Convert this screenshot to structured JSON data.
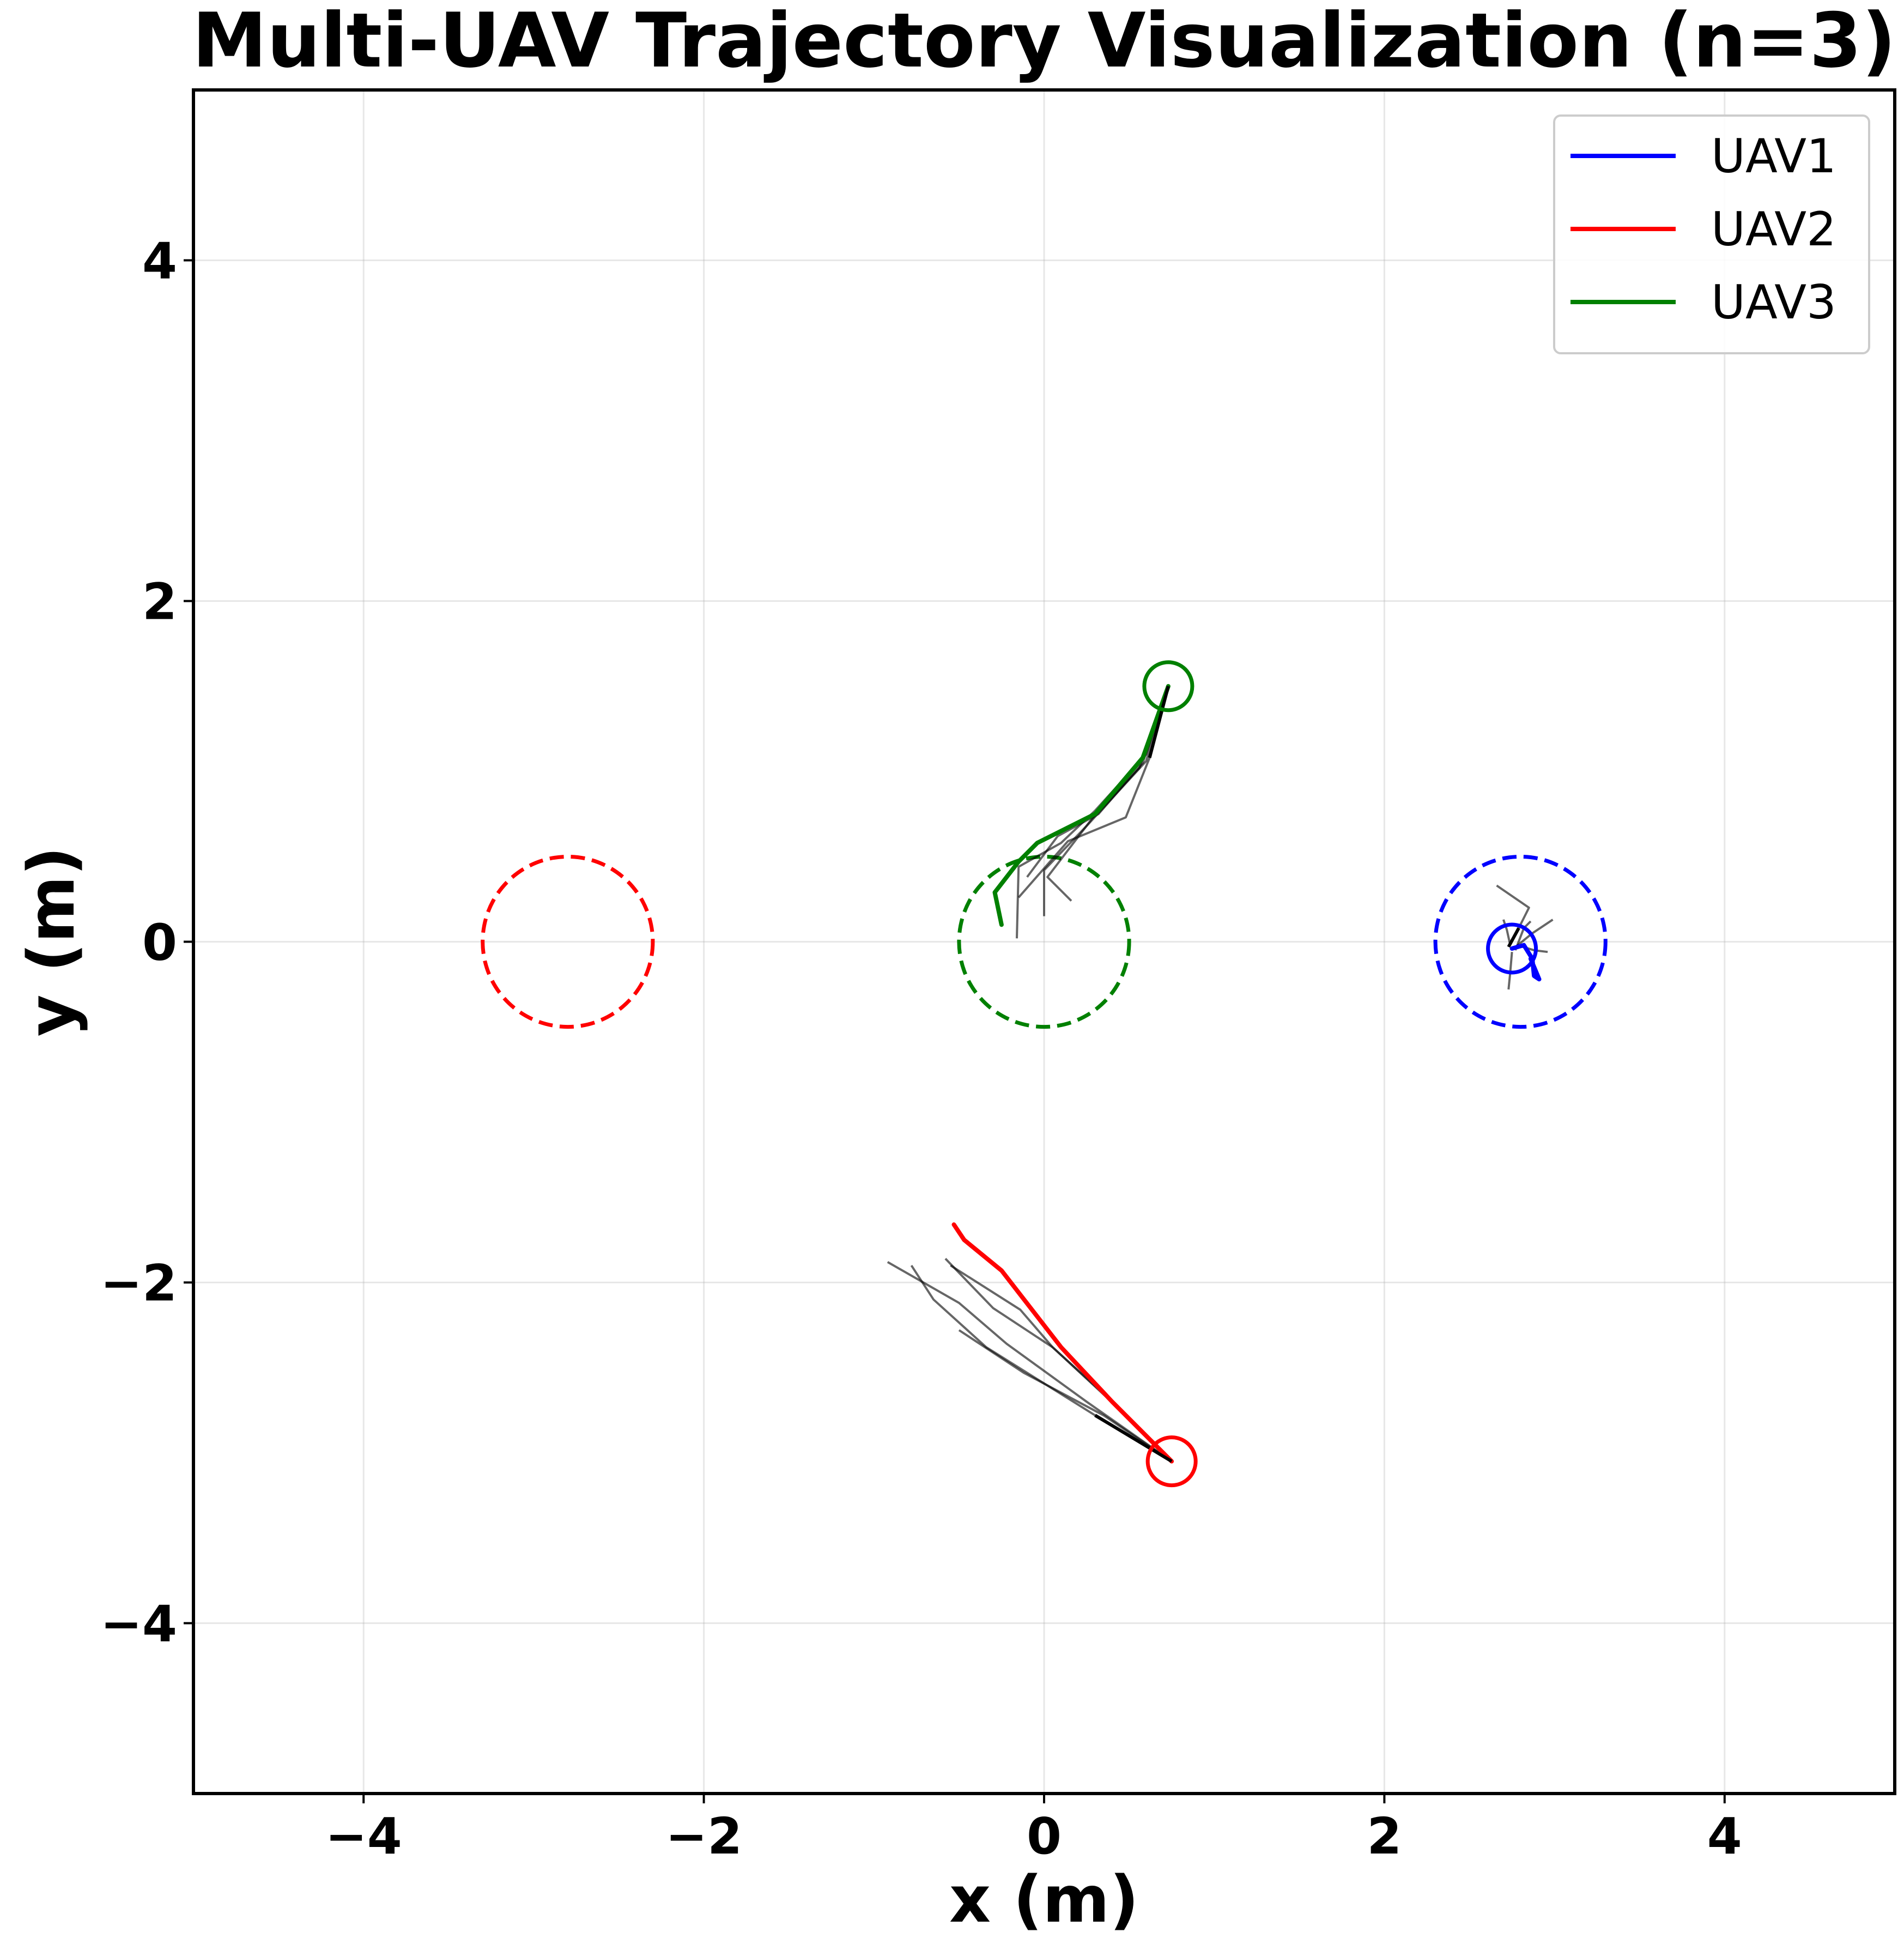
{
  "chart_data": {
    "type": "line",
    "title": "Multi-UAV Trajectory Visualization (n=3)",
    "xlabel": "x (m)",
    "ylabel": "y (m)",
    "xlim": [
      -5,
      5
    ],
    "ylim": [
      -5,
      5
    ],
    "xticks": [
      -4,
      -2,
      0,
      2,
      4
    ],
    "yticks": [
      -4,
      -2,
      0,
      2,
      4
    ],
    "xtick_labels": [
      "−4",
      "−2",
      "0",
      "2",
      "4"
    ],
    "ytick_labels": [
      "−4",
      "−2",
      "0",
      "2",
      "4"
    ],
    "grid": true,
    "legend_position": "top-right",
    "series": [
      {
        "name": "UAV1",
        "color": "#0000ff",
        "path": [
          [
            2.75,
            -0.04
          ],
          [
            2.82,
            -0.02
          ],
          [
            2.87,
            -0.1
          ],
          [
            2.88,
            -0.2
          ],
          [
            2.91,
            -0.22
          ],
          [
            2.86,
            -0.1
          ]
        ],
        "current_position": [
          2.75,
          -0.04
        ],
        "goal_center": [
          2.8,
          0.0
        ],
        "goal_radius": 0.5,
        "predicted_paths": [
          [
            [
              2.73,
              -0.03
            ],
            [
              2.79,
              0.08
            ],
            [
              2.85,
              0.2
            ],
            [
              2.66,
              0.33
            ]
          ],
          [
            [
              2.76,
              -0.04
            ],
            [
              2.87,
              0.05
            ],
            [
              2.99,
              0.13
            ]
          ],
          [
            [
              2.74,
              -0.02
            ],
            [
              2.72,
              0.07
            ],
            [
              2.7,
              0.13
            ]
          ],
          [
            [
              2.77,
              -0.05
            ],
            [
              2.82,
              0.08
            ],
            [
              2.86,
              0.12
            ]
          ],
          [
            [
              2.75,
              -0.06
            ],
            [
              2.74,
              -0.18
            ],
            [
              2.73,
              -0.28
            ]
          ],
          [
            [
              2.78,
              -0.02
            ],
            [
              2.88,
              -0.05
            ],
            [
              2.96,
              -0.06
            ]
          ]
        ]
      },
      {
        "name": "UAV2",
        "color": "#ff0000",
        "path": [
          [
            0.75,
            -3.05
          ],
          [
            0.4,
            -2.7
          ],
          [
            0.1,
            -2.38
          ],
          [
            -0.25,
            -1.93
          ],
          [
            -0.47,
            -1.75
          ],
          [
            -0.53,
            -1.66
          ]
        ],
        "current_position": [
          0.75,
          -3.05
        ],
        "goal_center": [
          -2.8,
          0.0
        ],
        "goal_radius": 0.5,
        "predicted_paths": [
          [
            [
              0.75,
              -3.05
            ],
            [
              0.3,
              -2.78
            ],
            [
              -0.34,
              -2.38
            ],
            [
              -0.65,
              -2.1
            ],
            [
              -0.78,
              -1.9
            ]
          ],
          [
            [
              0.75,
              -3.05
            ],
            [
              0.25,
              -2.7
            ],
            [
              -0.22,
              -2.36
            ],
            [
              -0.5,
              -2.12
            ],
            [
              -0.92,
              -1.88
            ]
          ],
          [
            [
              0.75,
              -3.05
            ],
            [
              0.45,
              -2.75
            ],
            [
              0.05,
              -2.38
            ],
            [
              -0.3,
              -2.15
            ],
            [
              -0.58,
              -1.86
            ]
          ],
          [
            [
              0.75,
              -3.05
            ],
            [
              0.35,
              -2.78
            ],
            [
              -0.12,
              -2.53
            ],
            [
              -0.5,
              -2.28
            ]
          ],
          [
            [
              0.75,
              -3.05
            ],
            [
              0.38,
              -2.68
            ],
            [
              0.05,
              -2.38
            ],
            [
              -0.14,
              -2.16
            ],
            [
              -0.55,
              -1.9
            ]
          ]
        ]
      },
      {
        "name": "UAV3",
        "color": "#008000",
        "path": [
          [
            0.73,
            1.5
          ],
          [
            0.58,
            1.08
          ],
          [
            0.3,
            0.75
          ],
          [
            -0.04,
            0.58
          ],
          [
            -0.15,
            0.47
          ],
          [
            -0.29,
            0.29
          ],
          [
            -0.25,
            0.1
          ]
        ],
        "current_position": [
          0.73,
          1.5
        ],
        "goal_center": [
          0.0,
          0.0
        ],
        "goal_radius": 0.5,
        "predicted_paths": [
          [
            [
              0.73,
              1.5
            ],
            [
              0.62,
              1.08
            ],
            [
              0.48,
              0.73
            ],
            [
              0.14,
              0.59
            ],
            [
              -0.15,
              0.26
            ]
          ],
          [
            [
              0.73,
              1.5
            ],
            [
              0.56,
              1.02
            ],
            [
              0.28,
              0.72
            ],
            [
              0.02,
              0.38
            ],
            [
              0.16,
              0.24
            ]
          ],
          [
            [
              0.73,
              1.5
            ],
            [
              0.6,
              1.1
            ],
            [
              0.3,
              0.77
            ],
            [
              0.1,
              0.58
            ],
            [
              -0.15,
              0.44
            ],
            [
              -0.16,
              0.02
            ]
          ],
          [
            [
              0.73,
              1.5
            ],
            [
              0.6,
              1.06
            ],
            [
              0.25,
              0.68
            ],
            [
              0.0,
              0.42
            ],
            [
              0.0,
              0.15
            ]
          ],
          [
            [
              0.73,
              1.5
            ],
            [
              0.58,
              1.05
            ],
            [
              0.32,
              0.75
            ],
            [
              0.08,
              0.62
            ],
            [
              -0.1,
              0.38
            ]
          ]
        ]
      }
    ]
  }
}
